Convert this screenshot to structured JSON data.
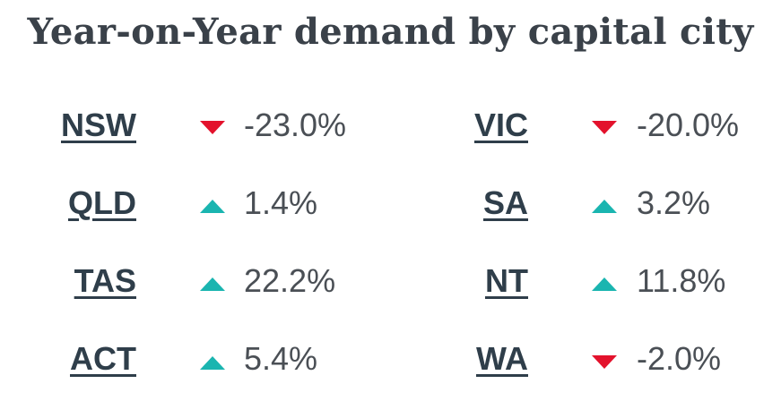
{
  "title": "Year-on-Year demand by capital city",
  "colors": {
    "down": "#e3122c",
    "up": "#1ab5b0",
    "text": "#2f3e4a"
  },
  "rows": [
    {
      "left": {
        "state": "NSW",
        "direction": "down",
        "icon": "down-triangle-icon",
        "value": "-23.0%"
      },
      "right": {
        "state": "VIC",
        "direction": "down",
        "icon": "down-triangle-icon",
        "value": "-20.0%"
      }
    },
    {
      "left": {
        "state": "QLD",
        "direction": "up",
        "icon": "up-triangle-icon",
        "value": "1.4%"
      },
      "right": {
        "state": "SA",
        "direction": "up",
        "icon": "up-triangle-icon",
        "value": "3.2%"
      }
    },
    {
      "left": {
        "state": "TAS",
        "direction": "up",
        "icon": "up-triangle-icon",
        "value": "22.2%"
      },
      "right": {
        "state": "NT",
        "direction": "up",
        "icon": "up-triangle-icon",
        "value": "11.8%"
      }
    },
    {
      "left": {
        "state": "ACT",
        "direction": "up",
        "icon": "up-triangle-icon",
        "value": "5.4%"
      },
      "right": {
        "state": "WA",
        "direction": "down",
        "icon": "down-triangle-icon",
        "value": "-2.0%"
      }
    }
  ]
}
